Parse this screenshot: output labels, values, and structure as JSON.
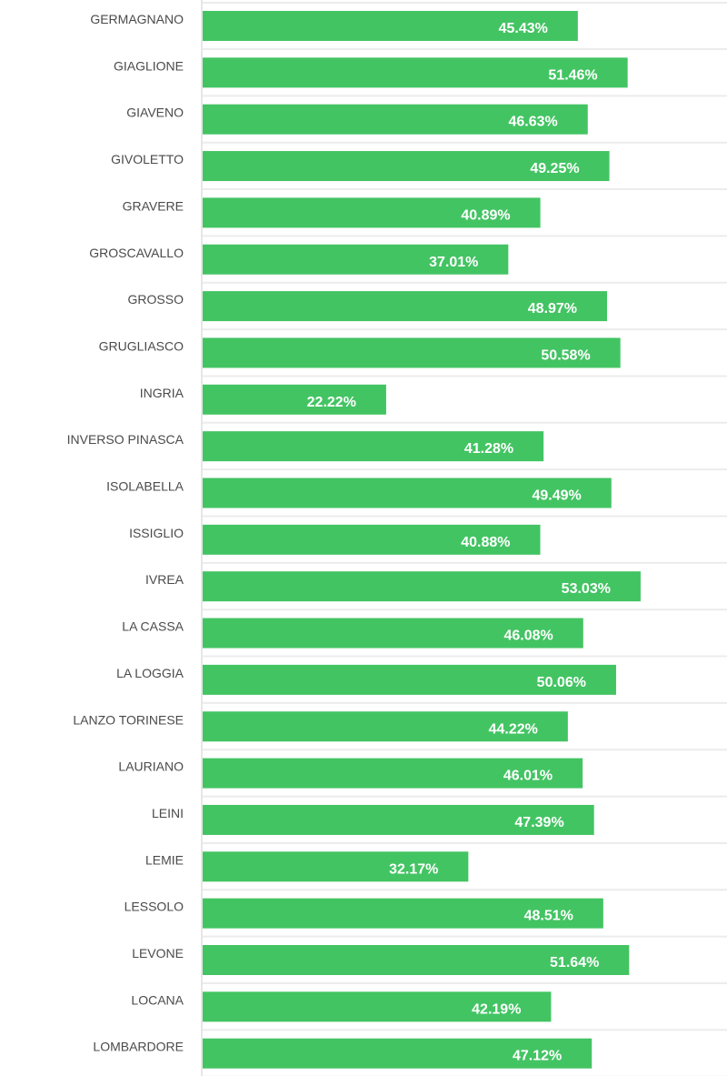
{
  "chart_data": {
    "type": "bar",
    "orientation": "horizontal",
    "title": "",
    "xlabel": "",
    "ylabel": "",
    "xlim": [
      0,
      63.6
    ],
    "grid": false,
    "bar_color": "#43c463",
    "separator_color": "#ececec",
    "axis_color": "#e6e6e6",
    "categories": [
      "GERMAGNANO",
      "GIAGLIONE",
      "GIAVENO",
      "GIVOLETTO",
      "GRAVERE",
      "GROSCAVALLO",
      "GROSSO",
      "GRUGLIASCO",
      "INGRIA",
      "INVERSO PINASCA",
      "ISOLABELLA",
      "ISSIGLIO",
      "IVREA",
      "LA CASSA",
      "LA LOGGIA",
      "LANZO TORINESE",
      "LAURIANO",
      "LEINI",
      "LEMIE",
      "LESSOLO",
      "LEVONE",
      "LOCANA",
      "LOMBARDORE"
    ],
    "values": [
      45.43,
      51.46,
      46.63,
      49.25,
      40.89,
      37.01,
      48.97,
      50.58,
      22.22,
      41.28,
      49.49,
      40.88,
      53.03,
      46.08,
      50.06,
      44.22,
      46.01,
      47.39,
      32.17,
      48.51,
      51.64,
      42.19,
      47.12
    ],
    "value_labels": [
      "45.43%",
      "51.46%",
      "46.63%",
      "49.25%",
      "40.89%",
      "37.01%",
      "48.97%",
      "50.58%",
      "22.22%",
      "41.28%",
      "49.49%",
      "40.88%",
      "53.03%",
      "46.08%",
      "50.06%",
      "44.22%",
      "46.01%",
      "47.39%",
      "32.17%",
      "48.51%",
      "51.64%",
      "42.19%",
      "47.12%"
    ]
  }
}
